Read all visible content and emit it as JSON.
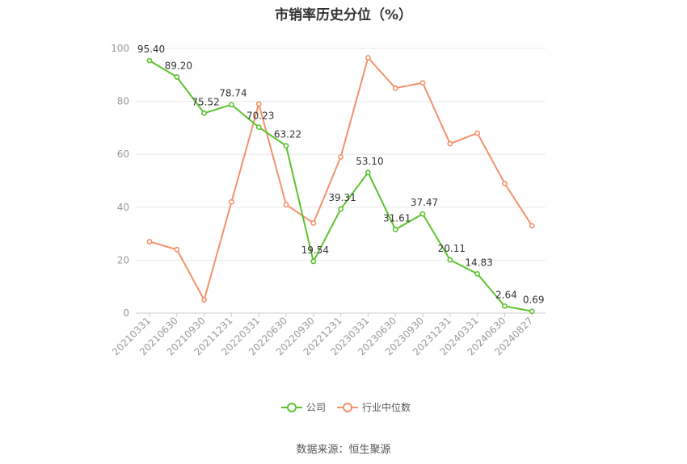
{
  "title": "市销率历史分位（%）",
  "source": "数据来源：恒生聚源",
  "chart_data": {
    "type": "line",
    "title": "市销率历史分位（%）",
    "categories": [
      "20210331",
      "20210630",
      "20210930",
      "20211231",
      "20220331",
      "20220630",
      "20220930",
      "20221231",
      "20230331",
      "20230630",
      "20230930",
      "20231231",
      "20240331",
      "20240630",
      "20240827"
    ],
    "ylim": [
      0,
      100
    ],
    "yticks": [
      0,
      20,
      40,
      60,
      80,
      100
    ],
    "grid": true,
    "legend_position": "bottom",
    "series": [
      {
        "name": "公司",
        "color": "#5cc22e",
        "values": [
          95.4,
          89.2,
          75.52,
          78.74,
          70.23,
          63.22,
          19.54,
          39.31,
          53.1,
          31.61,
          37.47,
          20.11,
          14.83,
          2.64,
          0.69
        ],
        "labels": [
          "95.40",
          "89.20",
          "75.52",
          "78.74",
          "70.23",
          "63.22",
          "19.54",
          "39.31",
          "53.10",
          "31.61",
          "37.47",
          "20.11",
          "14.83",
          "2.64",
          "0.69"
        ]
      },
      {
        "name": "行业中位数",
        "color": "#f4916a",
        "values": [
          27,
          24,
          5,
          42,
          79,
          41,
          34,
          59,
          96.5,
          85,
          87,
          64,
          68,
          49,
          33
        ]
      }
    ]
  }
}
